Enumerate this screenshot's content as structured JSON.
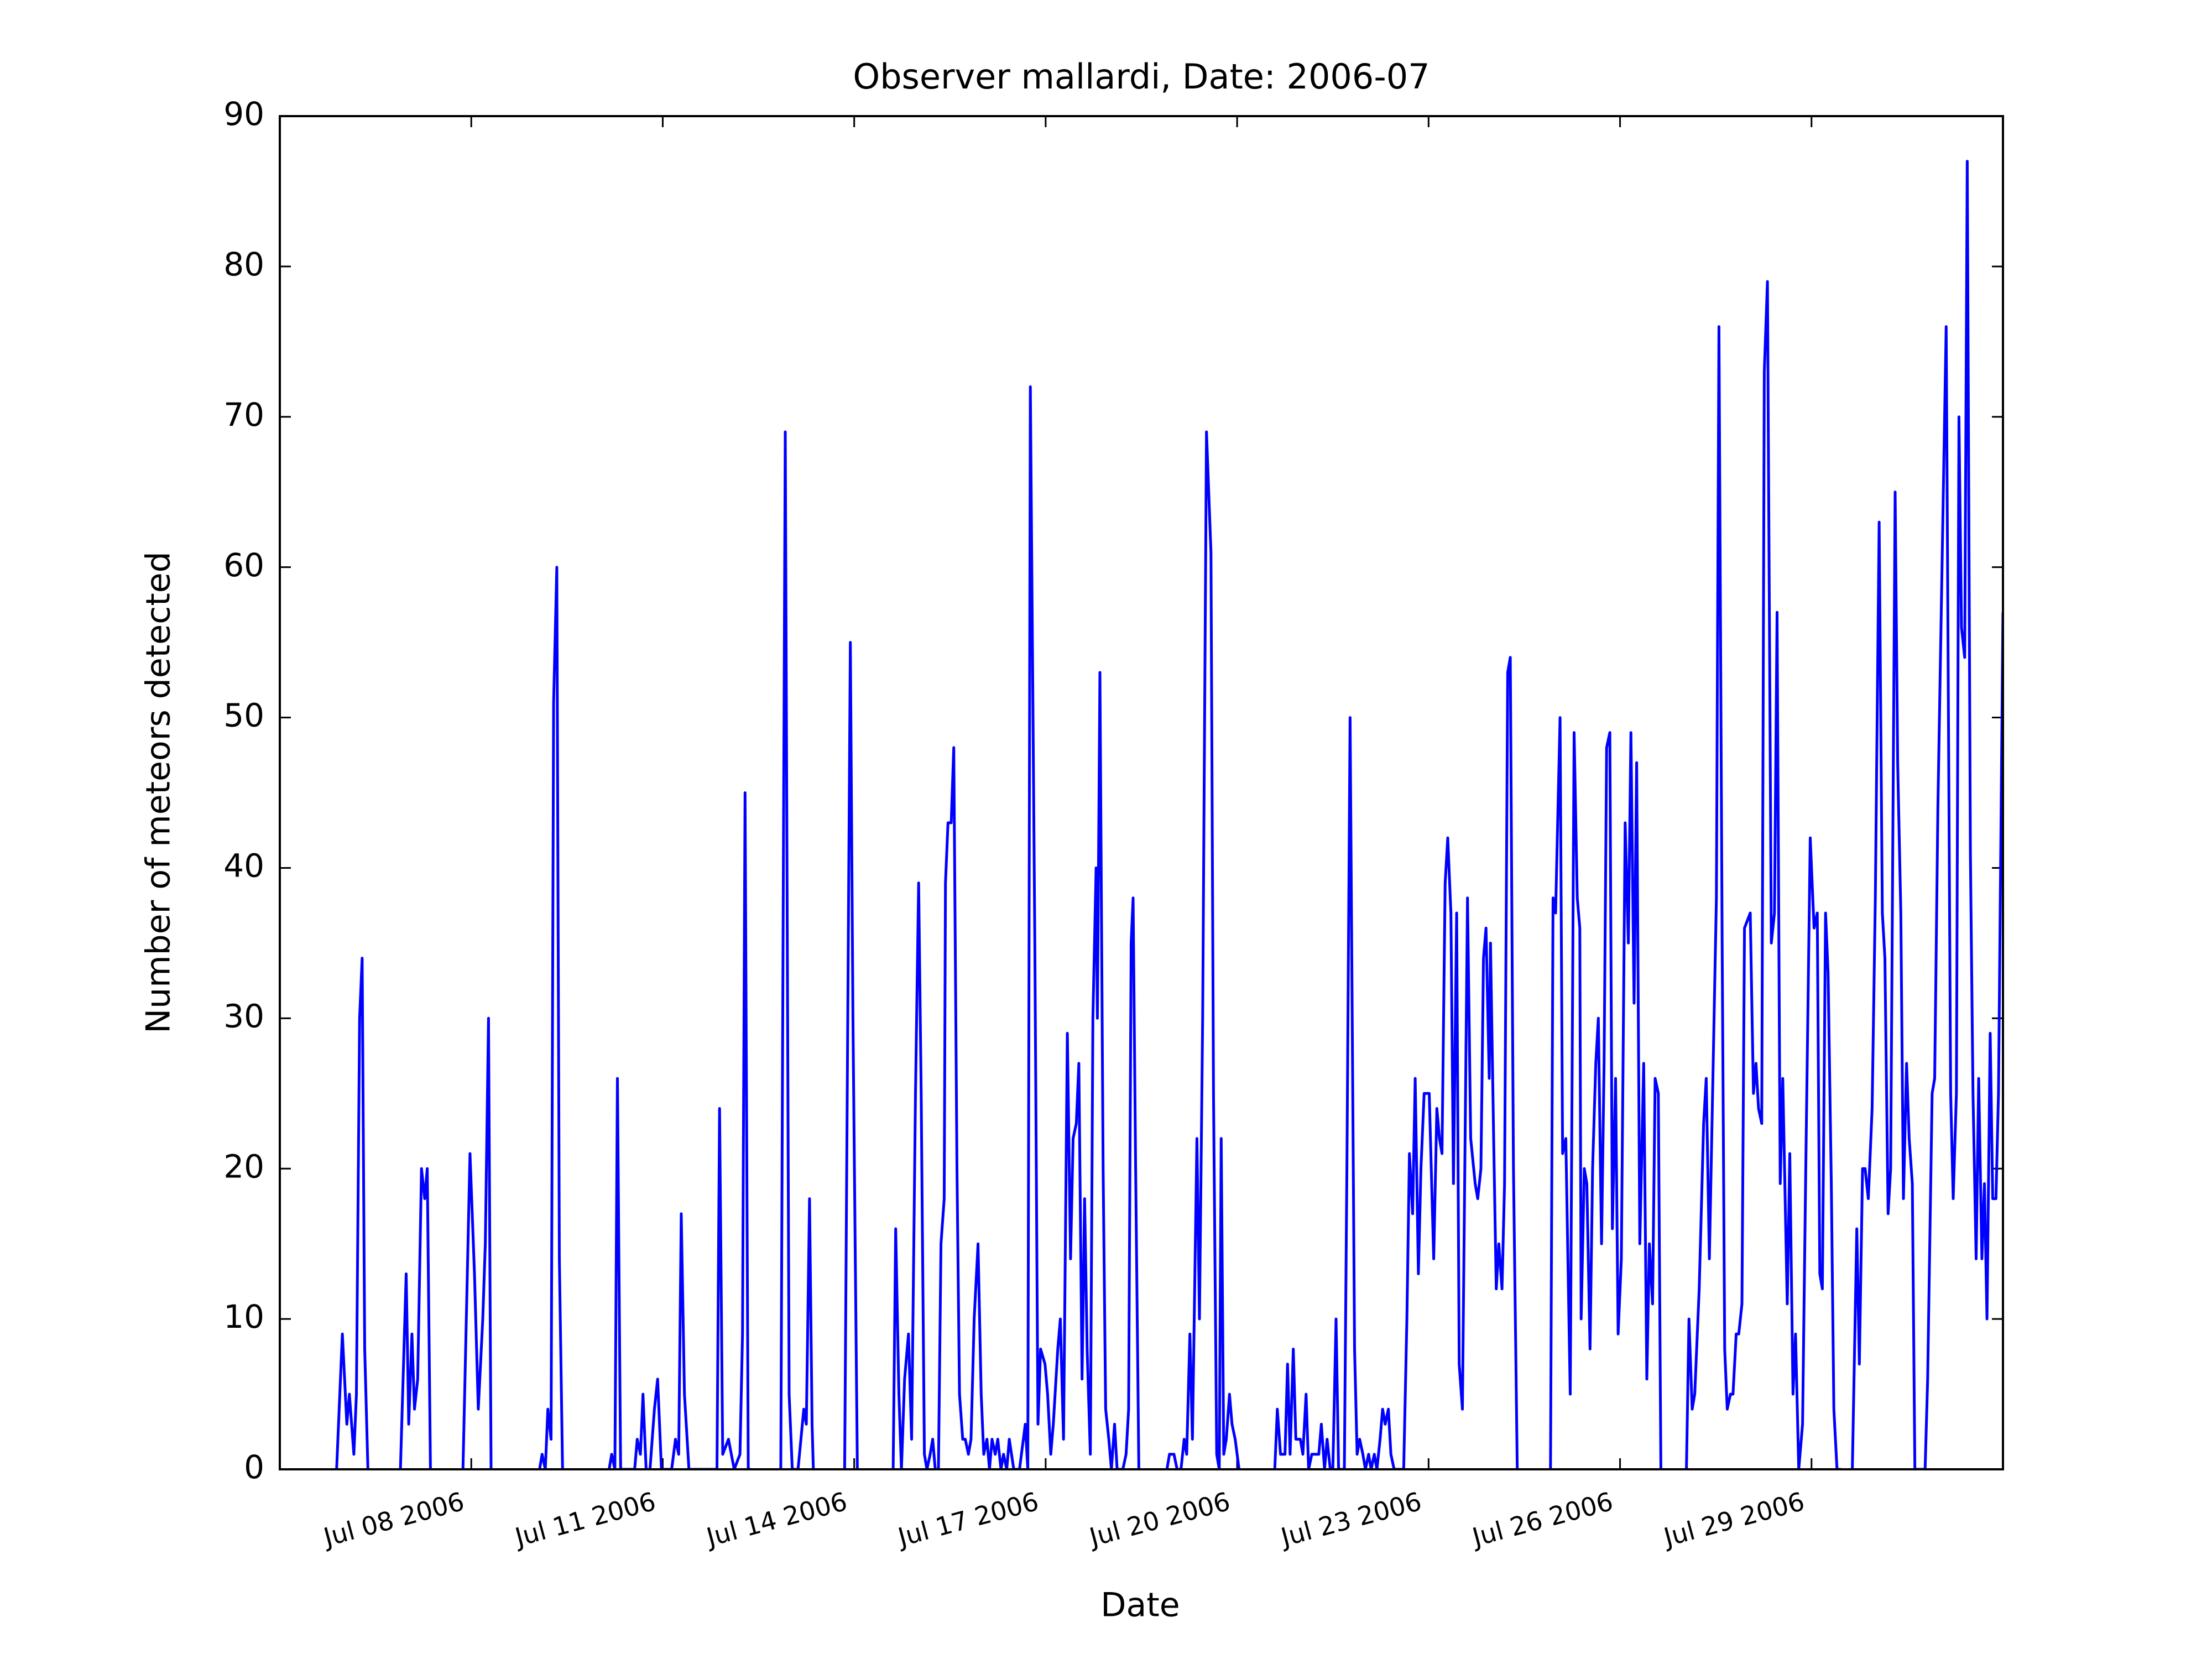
{
  "chart_data": {
    "type": "line",
    "title": "Observer mallardi, Date: 2006-07",
    "xlabel": "Date",
    "ylabel": "Number of meteors detected",
    "xlim": [
      5,
      32
    ],
    "ylim": [
      0,
      90
    ],
    "xticks": [
      {
        "value": 8,
        "label": "Jul 08 2006"
      },
      {
        "value": 11,
        "label": "Jul 11 2006"
      },
      {
        "value": 14,
        "label": "Jul 14 2006"
      },
      {
        "value": 17,
        "label": "Jul 17 2006"
      },
      {
        "value": 20,
        "label": "Jul 20 2006"
      },
      {
        "value": 23,
        "label": "Jul 23 2006"
      },
      {
        "value": 26,
        "label": "Jul 26 2006"
      },
      {
        "value": 29,
        "label": "Jul 29 2006"
      }
    ],
    "yticks": [
      0,
      10,
      20,
      30,
      40,
      50,
      60,
      70,
      80,
      90
    ],
    "grid": false,
    "series": [
      {
        "color": "#0000ff",
        "x": [
          5.89,
          5.98,
          6.05,
          6.09,
          6.16,
          6.2,
          6.25,
          6.29,
          6.33,
          6.38,
          6.6,
          6.89,
          6.98,
          7.02,
          7.07,
          7.11,
          7.16,
          7.22,
          7.27,
          7.31,
          7.36,
          7.6,
          7.87,
          7.98,
          8.05,
          8.11,
          8.18,
          8.22,
          8.27,
          8.31,
          8.7,
          9.07,
          9.11,
          9.16,
          9.2,
          9.25,
          9.29,
          9.34,
          9.38,
          9.43,
          9.8,
          10.16,
          10.2,
          10.25,
          10.29,
          10.34,
          10.56,
          10.6,
          10.65,
          10.69,
          10.74,
          10.8,
          10.87,
          10.92,
          10.98,
          11.14,
          11.2,
          11.25,
          11.29,
          11.34,
          11.41,
          11.85,
          11.89,
          11.94,
          12.03,
          12.12,
          12.21,
          12.25,
          12.29,
          12.34,
          12.38,
          12.6,
          12.85,
          12.92,
          12.98,
          13.03,
          13.12,
          13.21,
          13.25,
          13.3,
          13.34,
          13.36,
          13.6,
          13.85,
          13.94,
          13.98,
          14.05,
          14.3,
          14.61,
          14.65,
          14.7,
          14.74,
          14.79,
          14.85,
          14.9,
          14.96,
          15.01,
          15.05,
          15.1,
          15.14,
          15.19,
          15.23,
          15.27,
          15.32,
          15.36,
          15.41,
          15.43,
          15.47,
          15.52,
          15.56,
          15.61,
          15.65,
          15.7,
          15.74,
          15.79,
          15.83,
          15.88,
          15.94,
          15.99,
          16.03,
          16.08,
          16.12,
          16.16,
          16.21,
          16.25,
          16.3,
          16.34,
          16.39,
          16.43,
          16.5,
          16.59,
          16.68,
          16.72,
          16.76,
          16.83,
          16.88,
          16.92,
          16.99,
          17.03,
          17.08,
          17.12,
          17.19,
          17.23,
          17.28,
          17.34,
          17.39,
          17.43,
          17.48,
          17.52,
          17.57,
          17.61,
          17.65,
          17.7,
          17.74,
          17.79,
          17.81,
          17.85,
          17.9,
          17.94,
          17.99,
          18.03,
          18.08,
          18.12,
          18.21,
          18.26,
          18.3,
          18.34,
          18.37,
          18.41,
          18.46,
          18.7,
          18.9,
          18.94,
          19.01,
          19.06,
          19.12,
          19.17,
          19.21,
          19.26,
          19.3,
          19.37,
          19.41,
          19.46,
          19.52,
          19.59,
          19.63,
          19.68,
          19.72,
          19.75,
          19.79,
          19.83,
          19.88,
          19.92,
          19.97,
          20.03,
          20.3,
          20.59,
          20.63,
          20.68,
          20.75,
          20.79,
          20.83,
          20.88,
          20.92,
          20.99,
          21.03,
          21.08,
          21.12,
          21.17,
          21.24,
          21.28,
          21.32,
          21.37,
          21.41,
          21.46,
          21.5,
          21.55,
          21.59,
          21.68,
          21.72,
          21.77,
          21.84,
          21.88,
          21.92,
          21.97,
          22.01,
          22.06,
          22.1,
          22.15,
          22.19,
          22.24,
          22.28,
          22.32,
          22.37,
          22.41,
          22.46,
          22.61,
          22.66,
          22.7,
          22.75,
          22.79,
          22.84,
          22.88,
          22.93,
          23.01,
          23.08,
          23.13,
          23.17,
          23.21,
          23.26,
          23.3,
          23.35,
          23.39,
          23.44,
          23.48,
          23.53,
          23.61,
          23.66,
          23.73,
          23.77,
          23.82,
          23.86,
          23.9,
          23.95,
          23.97,
          24.02,
          24.06,
          24.1,
          24.15,
          24.19,
          24.24,
          24.28,
          24.33,
          24.39,
          24.6,
          24.91,
          24.95,
          24.99,
          25.06,
          25.1,
          25.15,
          25.22,
          25.28,
          25.33,
          25.37,
          25.39,
          25.44,
          25.48,
          25.53,
          25.57,
          25.62,
          25.66,
          25.71,
          25.75,
          25.79,
          25.84,
          25.88,
          25.93,
          25.97,
          26.02,
          26.08,
          26.13,
          26.17,
          26.22,
          26.26,
          26.31,
          26.37,
          26.42,
          26.46,
          26.51,
          26.55,
          26.6,
          26.64,
          26.8,
          27.04,
          27.08,
          27.13,
          27.17,
          27.24,
          27.31,
          27.35,
          27.4,
          27.51,
          27.55,
          27.6,
          27.64,
          27.68,
          27.73,
          27.77,
          27.82,
          27.86,
          27.91,
          27.95,
          28.04,
          28.09,
          28.13,
          28.17,
          28.22,
          28.26,
          28.31,
          28.37,
          28.42,
          28.46,
          28.51,
          28.55,
          28.62,
          28.66,
          28.71,
          28.75,
          28.8,
          28.86,
          28.91,
          28.98,
          29.04,
          29.09,
          29.13,
          29.17,
          29.22,
          29.26,
          29.31,
          29.35,
          29.4,
          29.46,
          29.55,
          29.64,
          29.71,
          29.75,
          29.8,
          29.84,
          29.89,
          29.95,
          30.0,
          30.06,
          30.11,
          30.15,
          30.2,
          30.24,
          30.31,
          30.35,
          30.4,
          30.44,
          30.49,
          30.53,
          30.58,
          30.62,
          30.78,
          30.82,
          30.89,
          30.93,
          30.98,
          31.11,
          31.18,
          31.22,
          31.27,
          31.31,
          31.35,
          31.4,
          31.44,
          31.49,
          31.53,
          31.58,
          31.62,
          31.67,
          31.71,
          31.75,
          31.8,
          31.84,
          31.89,
          31.93,
          32.0
        ],
        "values": [
          0,
          9,
          3,
          5,
          1,
          5,
          30,
          34,
          8,
          0,
          null,
          0,
          13,
          3,
          9,
          4,
          6,
          20,
          18,
          20,
          0,
          null,
          0,
          21,
          13,
          4,
          10,
          15,
          30,
          0,
          null,
          0,
          1,
          0,
          4,
          2,
          51,
          60,
          14,
          0,
          null,
          0,
          1,
          0,
          26,
          0,
          0,
          2,
          1,
          5,
          0,
          0,
          4,
          6,
          0,
          0,
          2,
          1,
          17,
          5,
          0,
          0,
          24,
          1,
          2,
          0,
          1,
          9,
          45,
          0,
          0,
          null,
          0,
          69,
          5,
          0,
          0,
          4,
          3,
          18,
          3,
          0,
          null,
          0,
          55,
          30,
          0,
          null,
          0,
          16,
          5,
          0,
          6,
          9,
          2,
          25,
          39,
          25,
          1,
          0,
          1,
          2,
          0,
          0,
          15,
          18,
          39,
          43,
          43,
          48,
          20,
          5,
          2,
          2,
          1,
          2,
          10,
          15,
          5,
          1,
          2,
          0,
          2,
          1,
          2,
          0,
          1,
          0,
          2,
          0,
          0,
          3,
          0,
          72,
          35,
          3,
          8,
          7,
          5,
          1,
          3,
          8,
          10,
          2,
          29,
          14,
          22,
          23,
          27,
          6,
          18,
          8,
          1,
          30,
          40,
          30,
          53,
          20,
          4,
          2,
          0,
          3,
          0,
          0,
          1,
          4,
          35,
          38,
          20,
          0,
          null,
          0,
          1,
          1,
          0,
          0,
          2,
          1,
          9,
          2,
          22,
          10,
          30,
          69,
          61,
          25,
          1,
          0,
          22,
          1,
          2,
          5,
          3,
          2,
          0,
          null,
          0,
          4,
          1,
          1,
          7,
          1,
          8,
          2,
          2,
          1,
          5,
          0,
          1,
          1,
          1,
          3,
          0,
          2,
          0,
          0,
          10,
          0,
          0,
          20,
          50,
          8,
          1,
          2,
          1,
          0,
          1,
          0,
          1,
          0,
          2,
          4,
          3,
          4,
          1,
          0,
          0,
          10,
          21,
          17,
          26,
          13,
          20,
          25,
          25,
          14,
          24,
          22,
          21,
          39,
          42,
          37,
          19,
          37,
          7,
          4,
          38,
          22,
          19,
          18,
          20,
          34,
          36,
          26,
          35,
          22,
          12,
          15,
          12,
          19,
          53,
          54,
          20,
          0,
          null,
          0,
          38,
          37,
          50,
          21,
          22,
          5,
          49,
          38,
          36,
          10,
          20,
          19,
          8,
          20,
          27,
          30,
          15,
          27,
          48,
          49,
          16,
          26,
          9,
          14,
          43,
          35,
          49,
          31,
          47,
          15,
          27,
          6,
          15,
          11,
          26,
          25,
          0,
          null,
          0,
          10,
          4,
          5,
          12,
          23,
          26,
          14,
          38,
          76,
          35,
          8,
          4,
          5,
          5,
          9,
          9,
          11,
          36,
          37,
          25,
          27,
          24,
          23,
          73,
          79,
          35,
          37,
          57,
          19,
          26,
          11,
          21,
          5,
          9,
          0,
          3,
          20,
          42,
          36,
          37,
          13,
          12,
          37,
          33,
          19,
          4,
          0,
          0,
          null,
          0,
          16,
          7,
          20,
          20,
          18,
          24,
          38,
          63,
          37,
          34,
          17,
          20,
          65,
          47,
          37,
          18,
          27,
          22,
          19,
          0,
          0,
          6,
          25,
          26,
          44,
          76,
          25,
          18,
          25,
          70,
          56,
          54,
          87,
          41,
          25,
          14,
          26,
          14,
          19,
          10,
          29,
          18,
          18,
          25,
          57
        ]
      }
    ]
  }
}
